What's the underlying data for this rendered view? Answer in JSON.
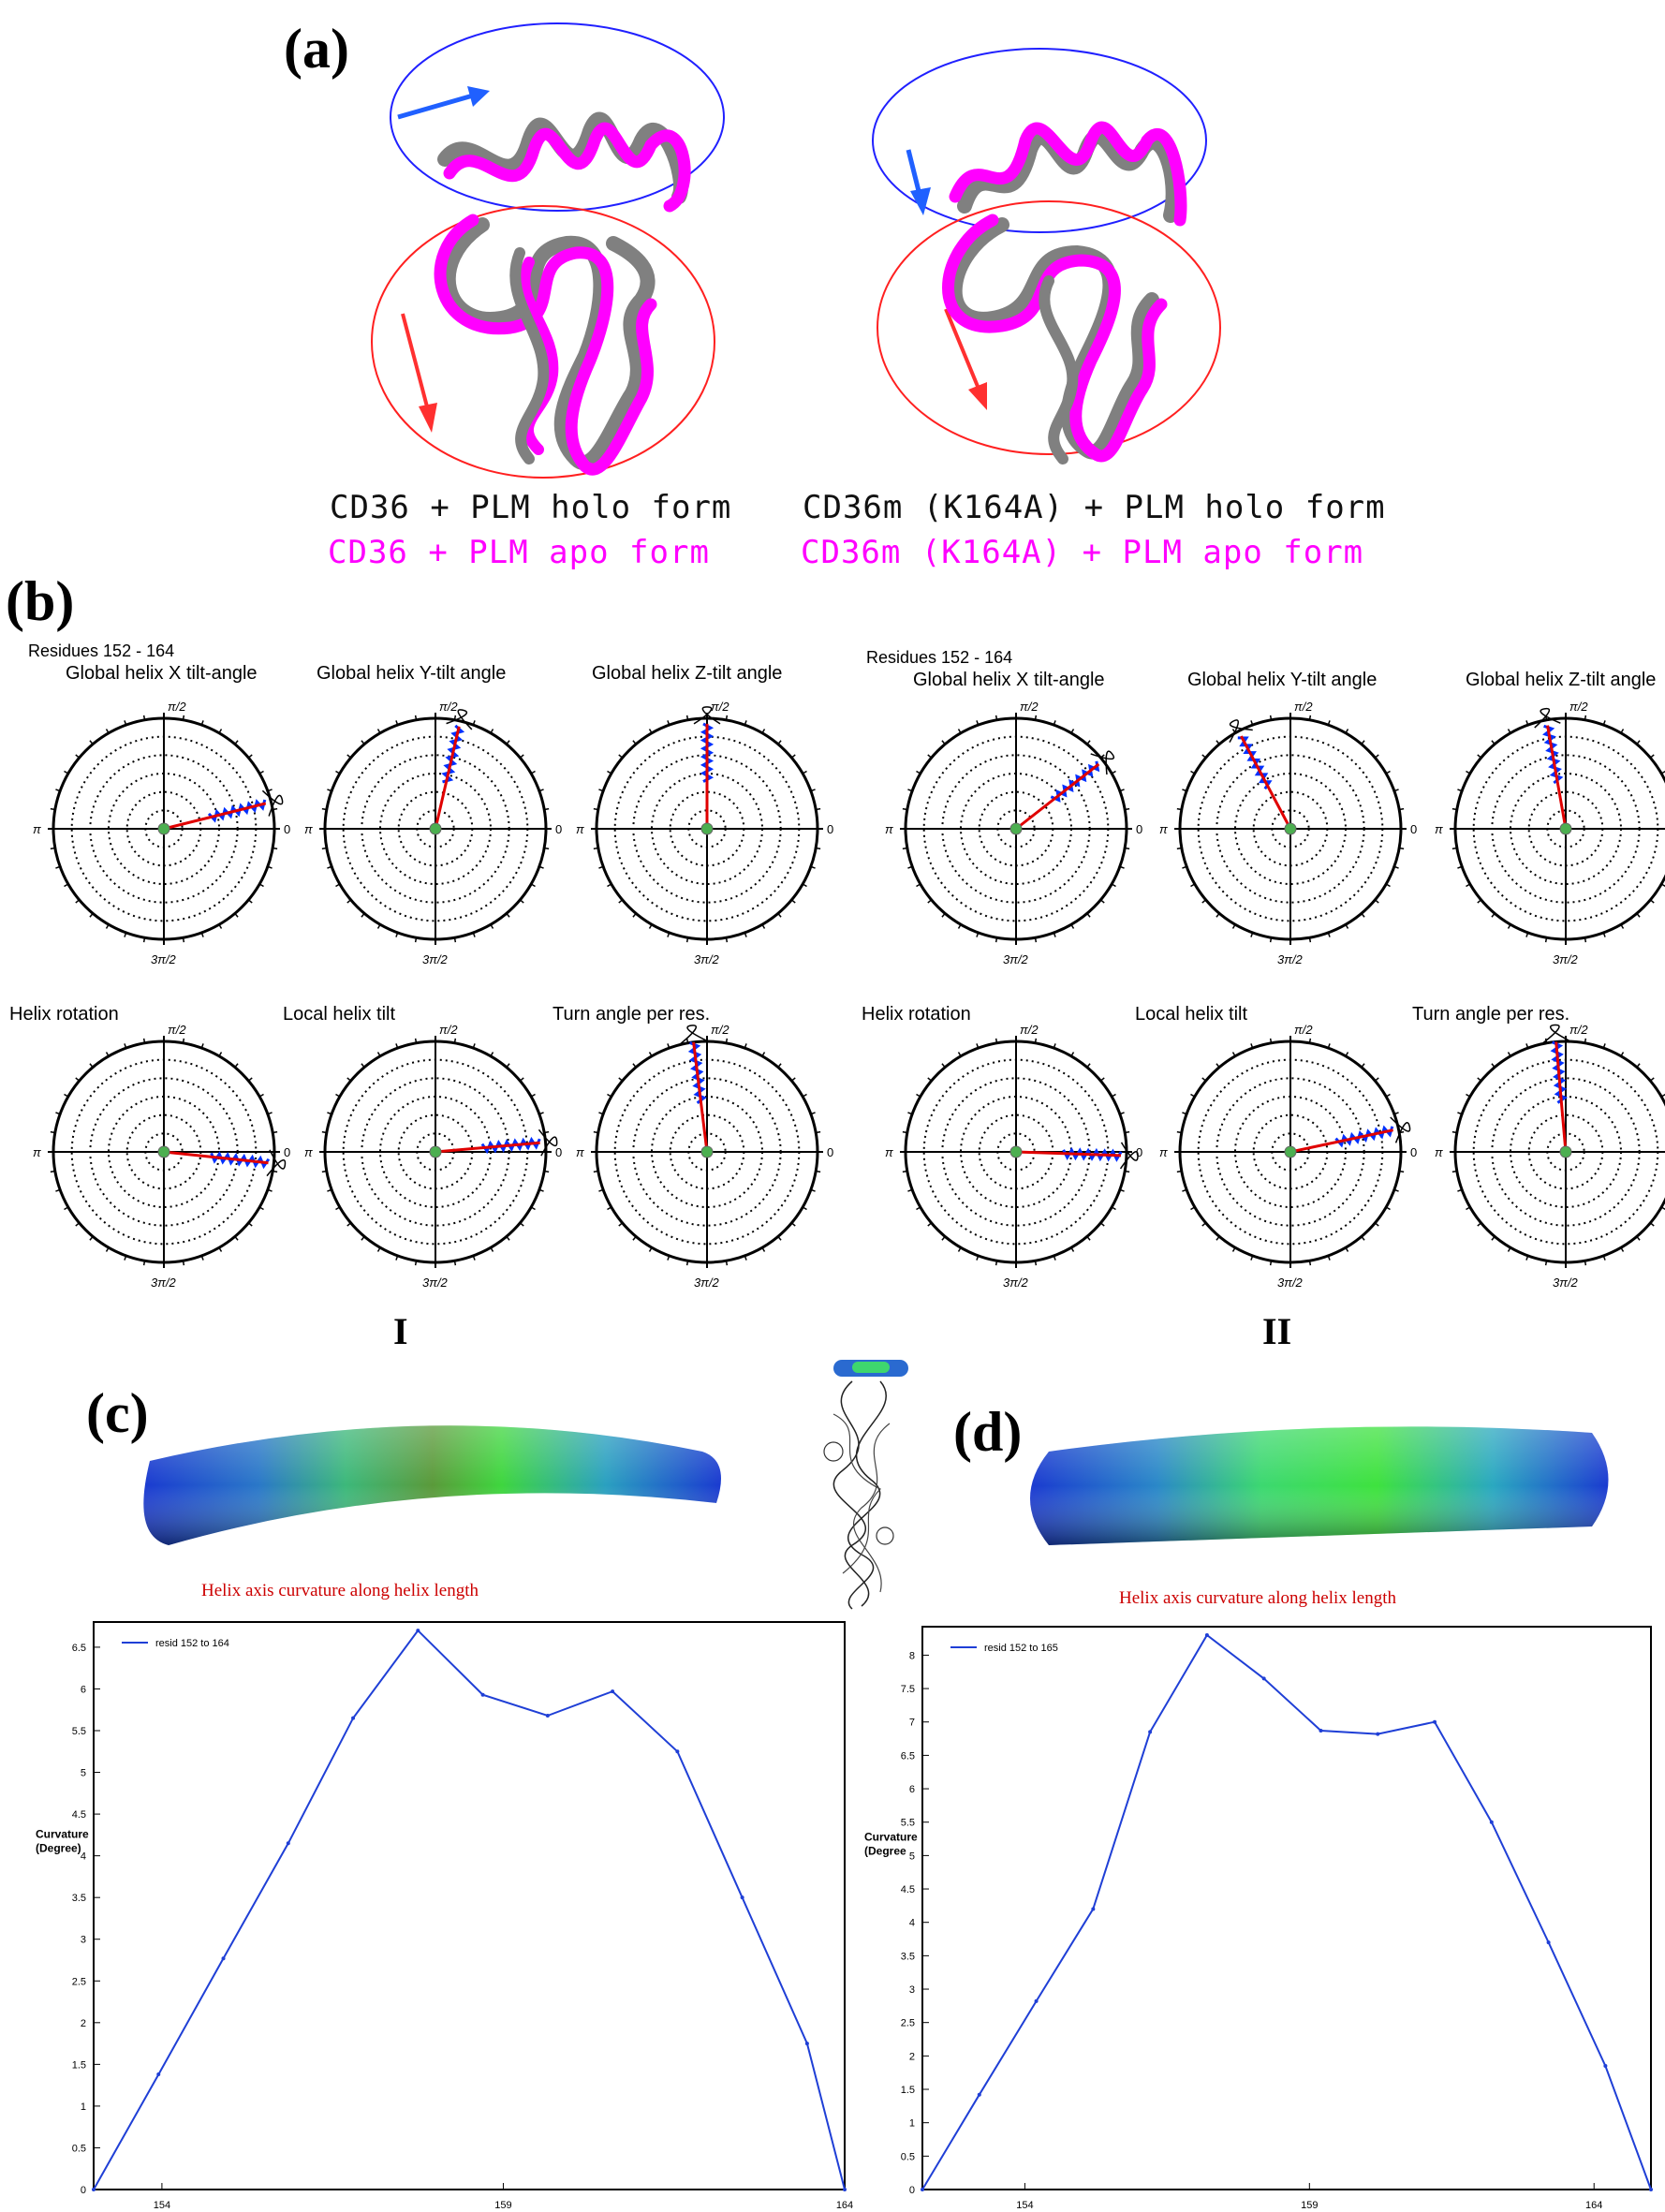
{
  "panel_a": {
    "label": "(a)",
    "legend_left": {
      "holo": "CD36 + PLM holo form",
      "apo": "CD36 + PLM apo form"
    },
    "legend_right": {
      "holo": "CD36m (K164A) + PLM holo form",
      "apo": "CD36m (K164A) + PLM apo form"
    },
    "colors": {
      "holo": "#808080",
      "apo": "#ff00ff",
      "upper_region": "#2020ff",
      "lower_region": "#ff2020"
    }
  },
  "panel_b": {
    "label": "(b)",
    "residues_label": "Residues 152 - 164",
    "group_labels": [
      "I",
      "II"
    ],
    "axis_labels": {
      "top": "π/2",
      "left": "π",
      "right": "0",
      "bottom": "3π/2"
    },
    "groups": [
      {
        "plots": [
          {
            "title": "Global helix X tilt-angle",
            "angle_deg": 14,
            "magnitude": 0.95
          },
          {
            "title": "Global helix Y-tilt angle",
            "angle_deg": 77,
            "magnitude": 0.95
          },
          {
            "title": "Global helix Z-tilt angle",
            "angle_deg": 90,
            "magnitude": 0.95
          },
          {
            "title": "Helix rotation",
            "angle_deg": -6,
            "magnitude": 0.95
          },
          {
            "title": "Local helix tilt",
            "angle_deg": 5,
            "magnitude": 0.95
          },
          {
            "title": "Turn angle per res.",
            "angle_deg": 97,
            "magnitude": 1.0
          }
        ]
      },
      {
        "plots": [
          {
            "title": "Global helix X tilt-angle",
            "angle_deg": 38,
            "magnitude": 0.95
          },
          {
            "title": "Global helix Y-tilt angle",
            "angle_deg": 118,
            "magnitude": 0.95
          },
          {
            "title": "Global helix Z-tilt angle",
            "angle_deg": 100,
            "magnitude": 0.95
          },
          {
            "title": "Helix rotation",
            "angle_deg": -2,
            "magnitude": 0.95
          },
          {
            "title": "Local helix tilt",
            "angle_deg": 12,
            "magnitude": 0.95
          },
          {
            "title": "Turn angle per res.",
            "angle_deg": 95,
            "magnitude": 1.0
          }
        ]
      }
    ],
    "colors": {
      "vector": "#e00000",
      "trace": "#0030ff",
      "center": "#4caf50"
    }
  },
  "panel_c": {
    "label": "(c)",
    "title": "Helix axis curvature along helix length"
  },
  "panel_d": {
    "label": "(d)",
    "title": "Helix axis curvature along helix length"
  },
  "chart_data": [
    {
      "type": "line",
      "title": "Helix axis curvature along helix length",
      "xlabel": "",
      "ylabel": "Curvature (Degree)",
      "xlim": [
        153,
        164
      ],
      "ylim": [
        0,
        6.7
      ],
      "xticks": [
        154,
        159,
        164
      ],
      "yticks": [
        0,
        0.5,
        1,
        1.5,
        2,
        2.5,
        3,
        3.5,
        4,
        4.5,
        5,
        5.5,
        6,
        6.5
      ],
      "series": [
        {
          "name": "resid 152 to 164",
          "color": "#1f3fd6",
          "x": [
            153,
            153.95,
            154.9,
            155.85,
            156.8,
            157.75,
            158.7,
            159.65,
            160.6,
            161.55,
            162.5,
            163.45,
            164
          ],
          "y": [
            0,
            1.38,
            2.77,
            4.15,
            5.65,
            6.7,
            5.93,
            5.68,
            5.97,
            5.25,
            3.5,
            1.75,
            0
          ]
        }
      ]
    },
    {
      "type": "line",
      "title": "Helix axis curvature along helix length",
      "xlabel": "",
      "ylabel": "Curvature (Degree",
      "xlim": [
        152.2,
        165
      ],
      "ylim": [
        0,
        8.3
      ],
      "xticks": [
        154,
        159,
        164
      ],
      "yticks": [
        0,
        0.5,
        1,
        1.5,
        2,
        2.5,
        3,
        3.5,
        4,
        4.5,
        5,
        5.5,
        6,
        6.5,
        7,
        7.5,
        8
      ],
      "series": [
        {
          "name": "resid 152 to 165",
          "color": "#1f3fd6",
          "x": [
            152.2,
            153.2,
            154.2,
            155.2,
            156.2,
            157.2,
            158.2,
            159.2,
            160.2,
            161.2,
            162.2,
            163.2,
            164.2,
            165
          ],
          "y": [
            0,
            1.42,
            2.82,
            4.2,
            6.85,
            8.3,
            7.65,
            6.87,
            6.82,
            7.0,
            5.5,
            3.7,
            1.85,
            0
          ]
        }
      ]
    }
  ]
}
